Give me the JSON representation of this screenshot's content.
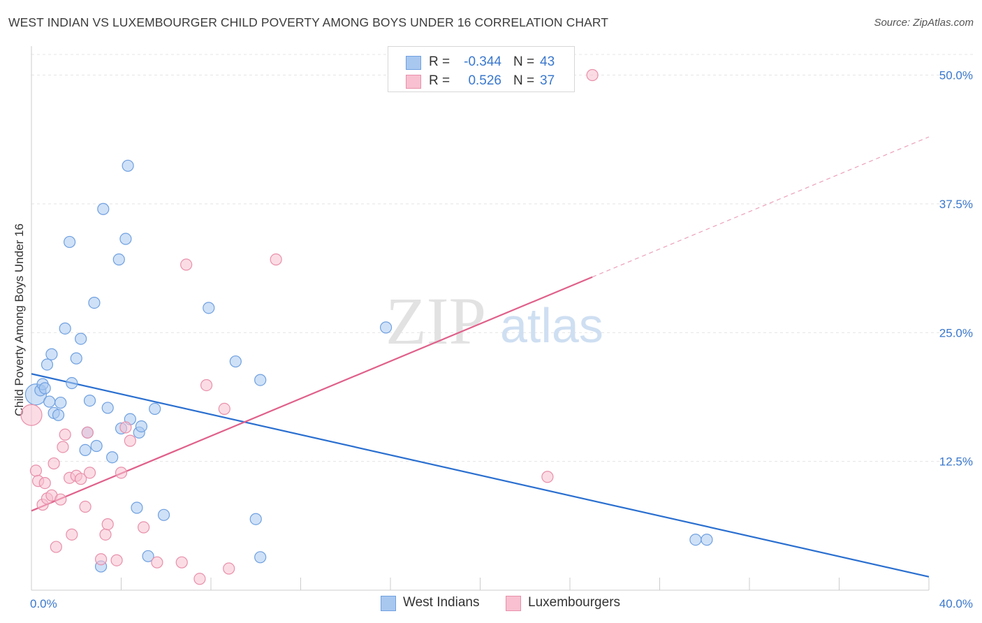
{
  "title": "WEST INDIAN VS LUXEMBOURGER CHILD POVERTY AMONG BOYS UNDER 16 CORRELATION CHART",
  "source": "Source: ZipAtlas.com",
  "watermark": {
    "part1": "ZIP",
    "part2": "atlas"
  },
  "legend_top": [
    {
      "r_label": "R =",
      "r_value": "-0.344",
      "n_label": "N =",
      "n_value": "43",
      "color": "#a8c8f0",
      "border": "#6fa0e0"
    },
    {
      "r_label": "R =",
      "r_value": "0.526",
      "n_label": "N =",
      "n_value": "37",
      "color": "#f8c0d0",
      "border": "#e890aa"
    }
  ],
  "legend_bottom": [
    {
      "label": "West Indians",
      "color": "#a8c8f0",
      "border": "#6fa0e0"
    },
    {
      "label": "Luxembourgers",
      "color": "#f8c0d0",
      "border": "#e890aa"
    }
  ],
  "chart_data": {
    "type": "scatter",
    "title": "WEST INDIAN VS LUXEMBOURGER CHILD POVERTY AMONG BOYS UNDER 16 CORRELATION CHART",
    "xlabel": "",
    "ylabel": "Child Poverty Among Boys Under 16",
    "xlim": [
      0,
      40
    ],
    "ylim": [
      0,
      52
    ],
    "x_tick_labels": [
      {
        "value": 0,
        "label": "0.0%"
      },
      {
        "value": 40,
        "label": "40.0%"
      }
    ],
    "y_tick_labels": [
      {
        "value": 12.5,
        "label": "12.5%"
      },
      {
        "value": 25.0,
        "label": "25.0%"
      },
      {
        "value": 37.5,
        "label": "37.5%"
      },
      {
        "value": 50.0,
        "label": "50.0%"
      }
    ],
    "grid": true,
    "series": [
      {
        "name": "West Indians",
        "color": "#6fa0e0",
        "fill": "#a8c8f0",
        "line_color": "#2a6fd0",
        "trend": {
          "x": [
            0,
            40
          ],
          "y": [
            21.0,
            1.3
          ]
        },
        "points": [
          [
            0.2,
            19.0
          ],
          [
            0.4,
            19.4
          ],
          [
            0.5,
            20.0
          ],
          [
            0.6,
            19.6
          ],
          [
            0.7,
            21.9
          ],
          [
            0.8,
            18.3
          ],
          [
            0.9,
            22.9
          ],
          [
            1.0,
            17.2
          ],
          [
            1.2,
            17.0
          ],
          [
            1.3,
            18.2
          ],
          [
            1.5,
            25.4
          ],
          [
            1.7,
            33.8
          ],
          [
            1.8,
            20.1
          ],
          [
            2.0,
            22.5
          ],
          [
            2.2,
            24.4
          ],
          [
            2.4,
            13.6
          ],
          [
            2.5,
            15.3
          ],
          [
            2.6,
            18.4
          ],
          [
            2.8,
            27.9
          ],
          [
            2.9,
            14.0
          ],
          [
            3.1,
            2.3
          ],
          [
            3.2,
            37.0
          ],
          [
            3.4,
            17.7
          ],
          [
            3.6,
            12.9
          ],
          [
            3.9,
            32.1
          ],
          [
            4.0,
            15.7
          ],
          [
            4.2,
            34.1
          ],
          [
            4.3,
            41.2
          ],
          [
            4.4,
            16.6
          ],
          [
            4.7,
            8.0
          ],
          [
            4.8,
            15.3
          ],
          [
            4.9,
            15.9
          ],
          [
            5.2,
            3.3
          ],
          [
            5.5,
            17.6
          ],
          [
            5.9,
            7.3
          ],
          [
            7.9,
            27.4
          ],
          [
            9.1,
            22.2
          ],
          [
            10.2,
            20.4
          ],
          [
            10.0,
            6.9
          ],
          [
            10.2,
            3.2
          ],
          [
            15.8,
            25.5
          ],
          [
            29.6,
            4.9
          ],
          [
            30.1,
            4.9
          ]
        ]
      },
      {
        "name": "Luxembourgers",
        "color": "#e890aa",
        "fill": "#f8c0d0",
        "line_color": "#e0608a",
        "trend": {
          "x": [
            0,
            25
          ],
          "y": [
            7.7,
            30.4
          ]
        },
        "trend_extension": {
          "x": [
            25,
            40
          ],
          "y": [
            30.4,
            44.0
          ]
        },
        "points": [
          [
            0.0,
            17.0
          ],
          [
            0.2,
            11.6
          ],
          [
            0.3,
            10.6
          ],
          [
            0.5,
            8.3
          ],
          [
            0.6,
            10.4
          ],
          [
            0.7,
            8.9
          ],
          [
            0.9,
            9.2
          ],
          [
            1.0,
            12.3
          ],
          [
            1.1,
            4.2
          ],
          [
            1.3,
            8.8
          ],
          [
            1.4,
            13.9
          ],
          [
            1.5,
            15.1
          ],
          [
            1.7,
            10.9
          ],
          [
            1.8,
            5.4
          ],
          [
            2.0,
            11.1
          ],
          [
            2.2,
            10.8
          ],
          [
            2.4,
            8.1
          ],
          [
            2.5,
            15.3
          ],
          [
            2.6,
            11.4
          ],
          [
            3.1,
            3.0
          ],
          [
            3.3,
            5.4
          ],
          [
            3.4,
            6.4
          ],
          [
            3.8,
            2.9
          ],
          [
            4.0,
            11.4
          ],
          [
            4.2,
            15.8
          ],
          [
            4.4,
            14.5
          ],
          [
            5.0,
            6.1
          ],
          [
            5.6,
            2.7
          ],
          [
            6.7,
            2.7
          ],
          [
            6.9,
            31.6
          ],
          [
            7.5,
            1.1
          ],
          [
            7.8,
            19.9
          ],
          [
            8.6,
            17.6
          ],
          [
            8.8,
            2.1
          ],
          [
            10.9,
            32.1
          ],
          [
            23.0,
            11.0
          ],
          [
            25.0,
            50.0
          ]
        ]
      }
    ]
  }
}
